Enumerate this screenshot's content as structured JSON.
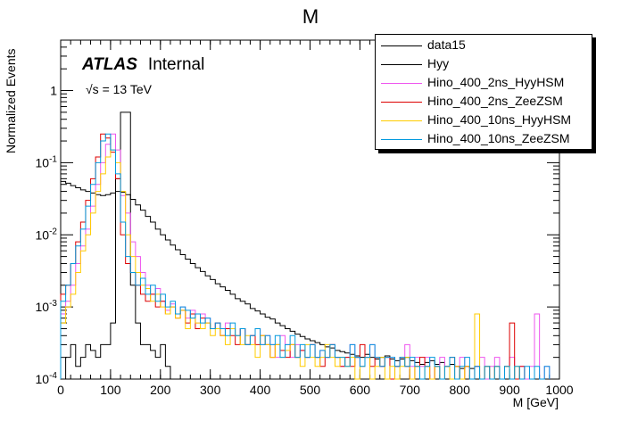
{
  "title": "M",
  "chart_data": {
    "type": "line",
    "title": "M",
    "xlabel": "M [GeV]",
    "ylabel": "Normalized Events",
    "xlim": [
      0,
      1000
    ],
    "ylim": [
      0.0001,
      5
    ],
    "yscale": "log",
    "xticks": [
      0,
      100,
      200,
      300,
      400,
      500,
      600,
      700,
      800,
      900,
      1000
    ],
    "yticks": [
      {
        "value": 0.0001,
        "label": "10^-4"
      },
      {
        "value": 0.001,
        "label": "10^-3"
      },
      {
        "value": 0.01,
        "label": "10^-2"
      },
      {
        "value": 0.1,
        "label": "10^-1"
      },
      {
        "value": 1,
        "label": "1"
      }
    ],
    "bin_width": 10,
    "atlas_label": "ATLAS",
    "atlas_sublabel": "Internal",
    "energy_label": "√s = 13 TeV",
    "legend_position": "top-right",
    "series": [
      {
        "name": "data15",
        "color": "#000000",
        "x": [
          5,
          15,
          25,
          35,
          45,
          55,
          65,
          75,
          85,
          95,
          105,
          115,
          125,
          135,
          145,
          155,
          165,
          175,
          185,
          195,
          205,
          215,
          225,
          235,
          245,
          255,
          265,
          275,
          285,
          295,
          305,
          315,
          325,
          335,
          345,
          355,
          365,
          375,
          385,
          395,
          405,
          415,
          425,
          435,
          445,
          455,
          465,
          475,
          485,
          495,
          505,
          515,
          525,
          535,
          545,
          555,
          565,
          575,
          585,
          595,
          605,
          615,
          625,
          635,
          645,
          655,
          665,
          675,
          685,
          695,
          705,
          715,
          725,
          735,
          745,
          755,
          765,
          775,
          785,
          795,
          805,
          815,
          825
        ],
        "values": [
          0.055,
          0.052,
          0.048,
          0.045,
          0.042,
          0.04,
          0.038,
          0.036,
          0.035,
          0.036,
          0.038,
          0.04,
          0.039,
          0.036,
          0.031,
          0.026,
          0.022,
          0.018,
          0.015,
          0.012,
          0.01,
          0.0085,
          0.0072,
          0.0062,
          0.0053,
          0.0046,
          0.004,
          0.0035,
          0.0031,
          0.0027,
          0.0024,
          0.0021,
          0.0019,
          0.0017,
          0.0015,
          0.0013,
          0.0012,
          0.0011,
          0.00095,
          0.00088,
          0.0008,
          0.00072,
          0.00068,
          0.0006,
          0.00055,
          0.0005,
          0.00046,
          0.00042,
          0.00039,
          0.00036,
          0.00034,
          0.00032,
          0.0003,
          0.00028,
          0.00027,
          0.00025,
          0.00024,
          0.00023,
          0.00022,
          0.00021,
          0.0002,
          0.00022,
          0.0002,
          0.00019,
          0.0002,
          0.00021,
          0.00019,
          0.00018,
          0.00019,
          0.0002,
          0.00018,
          0.00017,
          0.00016,
          0.00017,
          0.00018,
          0.00016,
          0.00017,
          0.00015,
          0.00016,
          0.00015,
          0.00014,
          0.00015,
          0.00014
        ]
      },
      {
        "name": "Hyy",
        "color": "#000000",
        "x": [
          15,
          25,
          35,
          45,
          55,
          65,
          75,
          85,
          95,
          105,
          115,
          125,
          135,
          145,
          155,
          165,
          175,
          185,
          195,
          205,
          215
        ],
        "values": [
          0.0002,
          0.0003,
          0.00015,
          0.0002,
          0.0003,
          0.00025,
          0.0002,
          0.0003,
          0.0003,
          0.0006,
          0.06,
          0.5,
          0.5,
          0.002,
          0.0006,
          0.0003,
          0.0003,
          0.00025,
          0.0002,
          0.0003,
          0.00015
        ]
      },
      {
        "name": "Hino_400_2ns_HyyHSM",
        "color": "#ee55ee",
        "x": [
          5,
          15,
          25,
          35,
          45,
          55,
          65,
          75,
          85,
          95,
          105,
          115,
          125,
          135,
          145,
          155,
          165,
          175,
          185,
          195,
          205,
          215,
          225,
          235,
          245,
          255,
          265,
          275,
          285,
          295,
          305,
          315,
          325,
          335,
          345,
          355,
          365,
          375,
          385,
          395,
          405,
          415,
          425,
          435,
          445,
          455,
          465,
          475,
          485,
          495,
          505,
          515,
          525,
          535,
          545,
          555,
          565,
          575,
          585,
          595,
          605,
          615,
          625,
          635,
          645,
          655,
          665,
          675,
          685,
          695,
          705,
          715,
          725,
          735,
          745,
          755,
          765,
          775,
          785,
          795,
          805,
          815,
          825,
          835,
          845,
          855,
          865,
          875,
          885,
          895,
          905,
          915,
          925,
          935,
          945,
          955,
          965,
          975
        ],
        "values": [
          0.0008,
          0.0012,
          0.002,
          0.004,
          0.007,
          0.012,
          0.025,
          0.05,
          0.1,
          0.18,
          0.25,
          0.15,
          0.035,
          0.02,
          0.008,
          0.005,
          0.003,
          0.002,
          0.0015,
          0.0018,
          0.0012,
          0.0009,
          0.0011,
          0.0008,
          0.001,
          0.0007,
          0.0009,
          0.0006,
          0.0008,
          0.0007,
          0.0005,
          0.0006,
          0.0004,
          0.0006,
          0.0005,
          0.0004,
          0.0005,
          0.0003,
          0.0004,
          0.0005,
          0.0003,
          0.0004,
          0.0003,
          0.0002,
          0.0004,
          0.0003,
          0.0002,
          0.0003,
          0.00025,
          0.0002,
          0.0003,
          0.0002,
          0.00025,
          0.0002,
          0.0003,
          0.0002,
          0.00015,
          0.0002,
          0.0003,
          0.0002,
          0.00015,
          0.0002,
          0.0003,
          0.0002,
          0.00015,
          0.0002,
          0.0002,
          0.00015,
          0.0002,
          0.0003,
          0.00015,
          0.0002,
          0.00015,
          0.0002,
          0.0001,
          0.00015,
          0.0002,
          0.00015,
          0.0001,
          0.00015,
          0.0002,
          0.00015,
          0.0001,
          0.00015,
          0.0002,
          0.0001,
          0.00015,
          0.0002,
          0.0001,
          0.00015,
          0.0002,
          0.0001,
          0.00015,
          0.0001,
          0.00015,
          0.0008,
          0.0001,
          0.00015
        ]
      },
      {
        "name": "Hino_400_2ns_ZeeZSM",
        "color": "#dd0000",
        "x": [
          5,
          15,
          25,
          35,
          45,
          55,
          65,
          75,
          85,
          95,
          105,
          115,
          125,
          135,
          145,
          155,
          165,
          175,
          185,
          195,
          205,
          215,
          225,
          235,
          245,
          255,
          265,
          275,
          285,
          295,
          305,
          315,
          325,
          335,
          345,
          355,
          365,
          375,
          385,
          395,
          405,
          415,
          425,
          435,
          445,
          455,
          465,
          475,
          485,
          495,
          505,
          515,
          525,
          535,
          545,
          555,
          565,
          575,
          585,
          595,
          605,
          615,
          625,
          635,
          645,
          655,
          665,
          675,
          685,
          695,
          705,
          715,
          725,
          735,
          745,
          755,
          765,
          775,
          785,
          795,
          805,
          815,
          825,
          835,
          845,
          855,
          865,
          875,
          885,
          895,
          905,
          915,
          925
        ],
        "values": [
          0.0015,
          0.002,
          0.004,
          0.008,
          0.015,
          0.03,
          0.06,
          0.12,
          0.25,
          0.22,
          0.14,
          0.06,
          0.01,
          0.004,
          0.003,
          0.002,
          0.0015,
          0.0012,
          0.0015,
          0.001,
          0.0012,
          0.0008,
          0.001,
          0.0007,
          0.0009,
          0.0006,
          0.0008,
          0.0005,
          0.0007,
          0.0006,
          0.0005,
          0.0006,
          0.0004,
          0.0005,
          0.0004,
          0.0003,
          0.0005,
          0.0003,
          0.0004,
          0.0003,
          0.0004,
          0.0003,
          0.0002,
          0.0003,
          0.00025,
          0.0002,
          0.0003,
          0.0002,
          0.00025,
          0.0002,
          0.0003,
          0.0002,
          0.00015,
          0.0002,
          0.0003,
          0.0002,
          0.00015,
          0.0002,
          0.00015,
          0.0002,
          0.0003,
          0.0002,
          0.00015,
          0.0002,
          0.00015,
          0.0002,
          0.0001,
          0.00015,
          0.0002,
          0.00015,
          0.0001,
          0.00015,
          0.0002,
          0.00015,
          0.0001,
          0.00015,
          0.0001,
          0.00015,
          0.0002,
          0.00015,
          0.0001,
          0.00015,
          0.0001,
          0.00015,
          0.0001,
          0.00015,
          0.0001,
          0.00015,
          0.0001,
          0.00015,
          0.0006,
          0.0001,
          0.00015
        ]
      },
      {
        "name": "Hino_400_10ns_HyyHSM",
        "color": "#ffcc00",
        "x": [
          5,
          15,
          25,
          35,
          45,
          55,
          65,
          75,
          85,
          95,
          105,
          115,
          125,
          135,
          145,
          155,
          165,
          175,
          185,
          195,
          205,
          215,
          225,
          235,
          245,
          255,
          265,
          275,
          285,
          295,
          305,
          315,
          325,
          335,
          345,
          355,
          365,
          375,
          385,
          395,
          405,
          415,
          425,
          435,
          445,
          455,
          465,
          475,
          485,
          495,
          505,
          515,
          525,
          535,
          545,
          555,
          565,
          575,
          585,
          595,
          605,
          615,
          625,
          635,
          645,
          655,
          665,
          675,
          685,
          695,
          705,
          715,
          725,
          735,
          745,
          755,
          765,
          775,
          785,
          795,
          805,
          815,
          825,
          835,
          845,
          855,
          865,
          875,
          885,
          895,
          905,
          915,
          925
        ],
        "values": [
          0.0006,
          0.001,
          0.0015,
          0.003,
          0.006,
          0.01,
          0.02,
          0.04,
          0.07,
          0.12,
          0.15,
          0.1,
          0.04,
          0.01,
          0.005,
          0.003,
          0.002,
          0.0018,
          0.0012,
          0.0015,
          0.001,
          0.0008,
          0.001,
          0.0007,
          0.0009,
          0.0005,
          0.0007,
          0.0006,
          0.0005,
          0.0006,
          0.0004,
          0.0005,
          0.0004,
          0.0003,
          0.0005,
          0.0004,
          0.0003,
          0.0004,
          0.0003,
          0.0002,
          0.0004,
          0.0003,
          0.0002,
          0.0003,
          0.0002,
          0.00025,
          0.0003,
          0.0002,
          0.00015,
          0.0003,
          0.0002,
          0.00015,
          0.0002,
          0.0003,
          0.0002,
          0.00015,
          0.0002,
          0.00015,
          0.0002,
          0.0001,
          0.00015,
          0.0002,
          0.0001,
          0.00015,
          0.0002,
          0.0001,
          0.00015,
          0.0001,
          0.00015,
          0.0002,
          0.0001,
          0.00015,
          0.0001,
          0.00015,
          0.0001,
          0.00015,
          0.0001,
          0.00015,
          0.0001,
          0.00015,
          0.0001,
          0.00015,
          0.0001,
          0.0008,
          0.0001,
          0.00015,
          0.0001,
          0.00015,
          0.0001,
          0.00015,
          0.0001,
          0.00015,
          0.0001
        ]
      },
      {
        "name": "Hino_400_10ns_ZeeZSM",
        "color": "#0099dd",
        "x": [
          5,
          15,
          25,
          35,
          45,
          55,
          65,
          75,
          85,
          95,
          105,
          115,
          125,
          135,
          145,
          155,
          165,
          175,
          185,
          195,
          205,
          215,
          225,
          235,
          245,
          255,
          265,
          275,
          285,
          295,
          305,
          315,
          325,
          335,
          345,
          355,
          365,
          375,
          385,
          395,
          405,
          415,
          425,
          435,
          445,
          455,
          465,
          475,
          485,
          495,
          505,
          515,
          525,
          535,
          545,
          555,
          565,
          575,
          585,
          595,
          605,
          615,
          625,
          635,
          645,
          655,
          665,
          675,
          685,
          695,
          705,
          715,
          725,
          735,
          745,
          755,
          765,
          775,
          785,
          795,
          805,
          815,
          825,
          835,
          845,
          855,
          865,
          875,
          885,
          895,
          905,
          915,
          925,
          935,
          945,
          955,
          965,
          975
        ],
        "values": [
          0.0012,
          0.002,
          0.004,
          0.007,
          0.012,
          0.025,
          0.05,
          0.1,
          0.2,
          0.25,
          0.15,
          0.07,
          0.015,
          0.005,
          0.003,
          0.002,
          0.0025,
          0.0015,
          0.002,
          0.0012,
          0.0015,
          0.001,
          0.0012,
          0.0008,
          0.001,
          0.0009,
          0.0007,
          0.0008,
          0.0006,
          0.0007,
          0.0005,
          0.0006,
          0.0005,
          0.0004,
          0.0006,
          0.0004,
          0.0005,
          0.0003,
          0.0004,
          0.0005,
          0.0003,
          0.0004,
          0.0003,
          0.0004,
          0.0002,
          0.0003,
          0.0004,
          0.0002,
          0.0003,
          0.0002,
          0.0003,
          0.0002,
          0.00025,
          0.0002,
          0.0003,
          0.0002,
          0.0002,
          0.00015,
          0.0003,
          0.0002,
          0.00015,
          0.0002,
          0.0003,
          0.0002,
          0.00015,
          0.0002,
          0.0002,
          0.00015,
          0.0002,
          0.00015,
          0.0002,
          0.00015,
          0.0001,
          0.00015,
          0.0002,
          0.00015,
          0.0001,
          0.00015,
          0.0002,
          0.0001,
          0.00015,
          0.0002,
          0.0001,
          0.00015,
          0.0001,
          0.00015,
          0.0001,
          0.00015,
          0.0001,
          0.00015,
          0.0001,
          0.00015,
          0.0001,
          0.00015,
          0.0001,
          0.00015,
          0.0001,
          0.00015
        ]
      }
    ]
  }
}
